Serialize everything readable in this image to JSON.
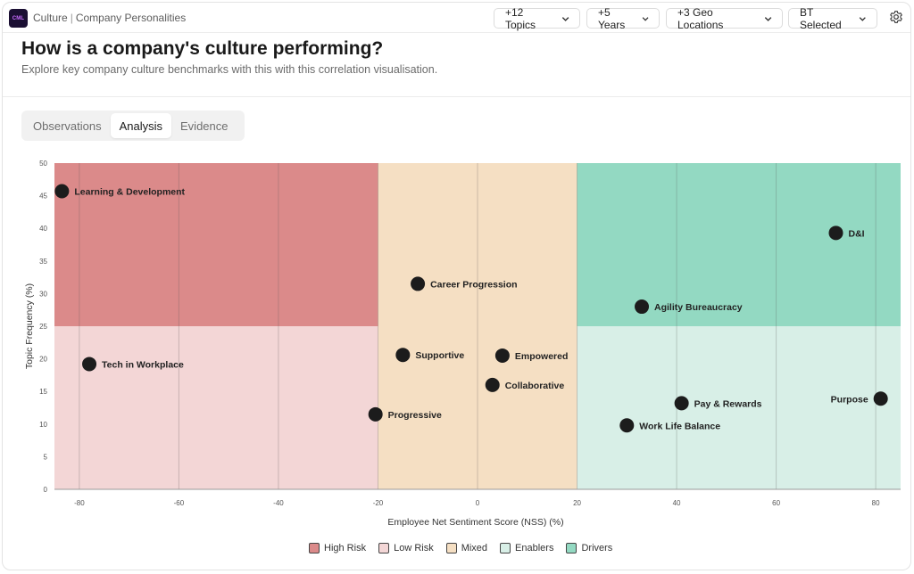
{
  "app": {
    "logo_text": "CML",
    "breadcrumb_section": "Culture",
    "breadcrumb_page": "Company Personalities"
  },
  "filters": [
    {
      "label": "+12 Topics"
    },
    {
      "label": "+5 Years"
    },
    {
      "label": "+3 Geo Locations"
    },
    {
      "label": "BT Selected"
    }
  ],
  "header": {
    "title": "How is a company's culture performing?",
    "subtitle": "Explore key company culture benchmarks with this with this correlation visualisation."
  },
  "tabs": [
    {
      "label": "Observations",
      "active": false
    },
    {
      "label": "Analysis",
      "active": true
    },
    {
      "label": "Evidence",
      "active": false
    }
  ],
  "chart_data": {
    "type": "scatter",
    "xlabel": "Employee Net Sentiment Score (NSS) (%)",
    "ylabel": "Topic Frequency (%)",
    "xlim": [
      -85,
      85
    ],
    "ylim": [
      0,
      50
    ],
    "xticks": [
      -80,
      -60,
      -40,
      -20,
      0,
      20,
      40,
      60,
      80
    ],
    "yticks": [
      0,
      5,
      10,
      15,
      20,
      25,
      30,
      35,
      40,
      45,
      50
    ],
    "grid": "vertical",
    "regions": [
      {
        "name": "High Risk",
        "x": [
          -85,
          -20
        ],
        "y": [
          25,
          50
        ],
        "color": "#db8a8a"
      },
      {
        "name": "Low Risk",
        "x": [
          -85,
          -20
        ],
        "y": [
          0,
          25
        ],
        "color": "#f3d6d6"
      },
      {
        "name": "Mixed",
        "x": [
          -20,
          20
        ],
        "y": [
          0,
          50
        ],
        "color": "#f5dfc3"
      },
      {
        "name": "Drivers",
        "x": [
          20,
          85
        ],
        "y": [
          25,
          50
        ],
        "color": "#93d9c2"
      },
      {
        "name": "Enablers",
        "x": [
          20,
          85
        ],
        "y": [
          0,
          25
        ],
        "color": "#d8efe7"
      }
    ],
    "points": [
      {
        "label": "Learning & Development",
        "x": -83.5,
        "y": 45.7,
        "label_side": "right"
      },
      {
        "label": "Tech in Workplace",
        "x": -78,
        "y": 19.2,
        "label_side": "right"
      },
      {
        "label": "Career Progression",
        "x": -12,
        "y": 31.5,
        "label_side": "right"
      },
      {
        "label": "Supportive",
        "x": -15,
        "y": 20.6,
        "label_side": "right"
      },
      {
        "label": "Progressive",
        "x": -20.5,
        "y": 11.5,
        "label_side": "right"
      },
      {
        "label": "Empowered",
        "x": 5,
        "y": 20.5,
        "label_side": "right"
      },
      {
        "label": "Collaborative",
        "x": 3,
        "y": 16,
        "label_side": "right"
      },
      {
        "label": "D&I",
        "x": 72,
        "y": 39.3,
        "label_side": "right"
      },
      {
        "label": "Agility Bureaucracy",
        "x": 33,
        "y": 28,
        "label_side": "right"
      },
      {
        "label": "Pay & Rewards",
        "x": 41,
        "y": 13.2,
        "label_side": "right"
      },
      {
        "label": "Work Life Balance",
        "x": 30,
        "y": 9.8,
        "label_side": "right"
      },
      {
        "label": "Purpose",
        "x": 81,
        "y": 13.9,
        "label_side": "left"
      }
    ],
    "point_color": "#1c1c1c"
  },
  "legend": [
    {
      "label": "High Risk",
      "color": "#db8a8a"
    },
    {
      "label": "Low Risk",
      "color": "#f3d6d6"
    },
    {
      "label": "Mixed",
      "color": "#f5dfc3"
    },
    {
      "label": "Enablers",
      "color": "#d8efe7"
    },
    {
      "label": "Drivers",
      "color": "#93d9c2"
    }
  ],
  "icons": {
    "filter_chevron": "chevron-down-icon",
    "settings": "gear-icon"
  }
}
